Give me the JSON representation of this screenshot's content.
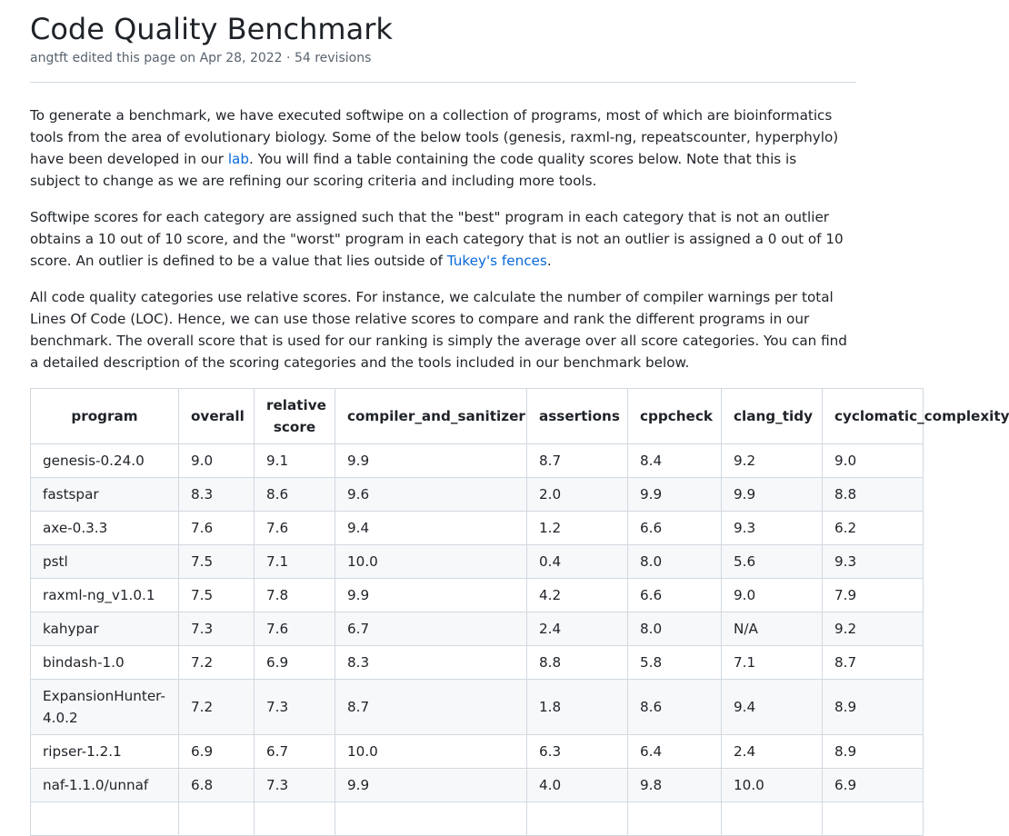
{
  "page": {
    "title": "Code Quality Benchmark",
    "meta": "angtft edited this page on Apr 28, 2022 · 54 revisions"
  },
  "intro": {
    "p1_before": "To generate a benchmark, we have executed softwipe on a collection of programs, most of which are bioinformatics tools from the area of evolutionary biology. Some of the below tools (genesis, raxml-ng, repeatscounter, hyperphylo) have been developed in our ",
    "p1_link": "lab",
    "p1_after": ". You will find a table containing the code quality scores below. Note that this is subject to change as we are refining our scoring criteria and including more tools.",
    "p2_before": "Softwipe scores for each category are assigned such that the \"best\" program in each category that is not an outlier obtains a 10 out of 10 score, and the \"worst\" program in each category that is not an outlier is assigned a 0 out of 10 score. An outlier is defined to be a value that lies outside of ",
    "p2_link": "Tukey's fences",
    "p2_after": ".",
    "p3": "All code quality categories use relative scores. For instance, we calculate the number of compiler warnings per total Lines Of Code (LOC). Hence, we can use those relative scores to compare and rank the different programs in our benchmark. The overall score that is used for our ranking is simply the average over all score categories. You can find a detailed description of the scoring categories and the tools included in our benchmark below."
  },
  "table": {
    "headers": [
      "program",
      "overall",
      "relative score",
      "compiler_and_sanitizer",
      "assertions",
      "cppcheck",
      "clang_tidy",
      "cyclomatic_complexity"
    ],
    "rows": [
      [
        "genesis-0.24.0",
        "9.0",
        "9.1",
        "9.9",
        "8.7",
        "8.4",
        "9.2",
        "9.0"
      ],
      [
        "fastspar",
        "8.3",
        "8.6",
        "9.6",
        "2.0",
        "9.9",
        "9.9",
        "8.8"
      ],
      [
        "axe-0.3.3",
        "7.6",
        "7.6",
        "9.4",
        "1.2",
        "6.6",
        "9.3",
        "6.2"
      ],
      [
        "pstl",
        "7.5",
        "7.1",
        "10.0",
        "0.4",
        "8.0",
        "5.6",
        "9.3"
      ],
      [
        "raxml-ng_v1.0.1",
        "7.5",
        "7.8",
        "9.9",
        "4.2",
        "6.6",
        "9.0",
        "7.9"
      ],
      [
        "kahypar",
        "7.3",
        "7.6",
        "6.7",
        "2.4",
        "8.0",
        "N/A",
        "9.2"
      ],
      [
        "bindash-1.0",
        "7.2",
        "6.9",
        "8.3",
        "8.8",
        "5.8",
        "7.1",
        "8.7"
      ],
      [
        "ExpansionHunter-4.0.2",
        "7.2",
        "7.3",
        "8.7",
        "1.8",
        "8.6",
        "9.4",
        "8.9"
      ],
      [
        "ripser-1.2.1",
        "6.9",
        "6.7",
        "10.0",
        "6.3",
        "6.4",
        "2.4",
        "8.9"
      ],
      [
        "naf-1.1.0/unnaf",
        "6.8",
        "7.3",
        "9.9",
        "4.0",
        "9.8",
        "10.0",
        "6.9"
      ],
      [
        "",
        "",
        "",
        "",
        "",
        "",
        "",
        ""
      ]
    ]
  }
}
